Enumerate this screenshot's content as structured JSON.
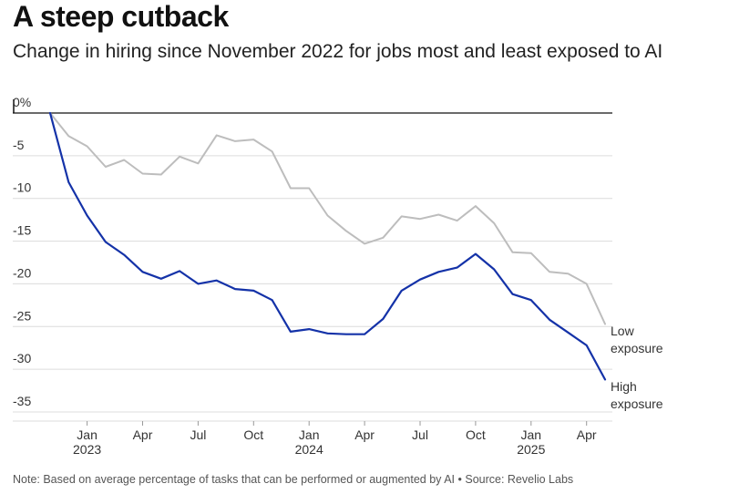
{
  "chart_data": {
    "type": "line",
    "title": "A steep cutback",
    "subtitle": "Change in hiring since November 2022 for jobs most and least exposed to AI",
    "ylabel": "",
    "xlabel": "",
    "ylim": [
      -35,
      0
    ],
    "yticks": [
      {
        "value": 0,
        "label": "0%"
      },
      {
        "value": -5,
        "label": "-5"
      },
      {
        "value": -10,
        "label": "-10"
      },
      {
        "value": -15,
        "label": "-15"
      },
      {
        "value": -20,
        "label": "-20"
      },
      {
        "value": -25,
        "label": "-25"
      },
      {
        "value": -30,
        "label": "-30"
      },
      {
        "value": -35,
        "label": "-35"
      }
    ],
    "xticks": [
      {
        "index": 2,
        "label": "Jan",
        "year": "2023"
      },
      {
        "index": 5,
        "label": "Apr",
        "year": ""
      },
      {
        "index": 8,
        "label": "Jul",
        "year": ""
      },
      {
        "index": 11,
        "label": "Oct",
        "year": ""
      },
      {
        "index": 14,
        "label": "Jan",
        "year": "2024"
      },
      {
        "index": 17,
        "label": "Apr",
        "year": ""
      },
      {
        "index": 20,
        "label": "Jul",
        "year": ""
      },
      {
        "index": 23,
        "label": "Oct",
        "year": ""
      },
      {
        "index": 26,
        "label": "Jan",
        "year": "2025"
      },
      {
        "index": 29,
        "label": "Apr",
        "year": ""
      }
    ],
    "x_count": 31,
    "series": [
      {
        "name": "Low exposure",
        "label_lines": [
          "Low",
          "exposure"
        ],
        "color": "#bdbdbd",
        "values": [
          0,
          -2.7,
          -3.9,
          -6.3,
          -5.5,
          -7.1,
          -7.2,
          -5.1,
          -5.9,
          -2.6,
          -3.3,
          -3.1,
          -4.5,
          -8.8,
          -8.8,
          -12.0,
          -13.8,
          -15.3,
          -14.6,
          -12.1,
          -12.4,
          -11.9,
          -12.6,
          -10.9,
          -12.9,
          -16.3,
          -16.4,
          -18.6,
          -18.8,
          -20.0,
          -24.7
        ]
      },
      {
        "name": "High exposure",
        "label_lines": [
          "High",
          "exposure"
        ],
        "color": "#1432a8",
        "values": [
          0,
          -8.1,
          -12.0,
          -15.1,
          -16.6,
          -18.6,
          -19.4,
          -18.5,
          -20.0,
          -19.6,
          -20.6,
          -20.8,
          -21.9,
          -25.6,
          -25.3,
          -25.8,
          -25.9,
          -25.9,
          -24.1,
          -20.8,
          -19.5,
          -18.6,
          -18.1,
          -16.5,
          -18.3,
          -21.2,
          -21.9,
          -24.2,
          -25.7,
          -27.2,
          -31.2
        ]
      }
    ]
  },
  "note": "Note: Based on average percentage of tasks that can be performed or augmented by AI • Source: Revelio Labs"
}
